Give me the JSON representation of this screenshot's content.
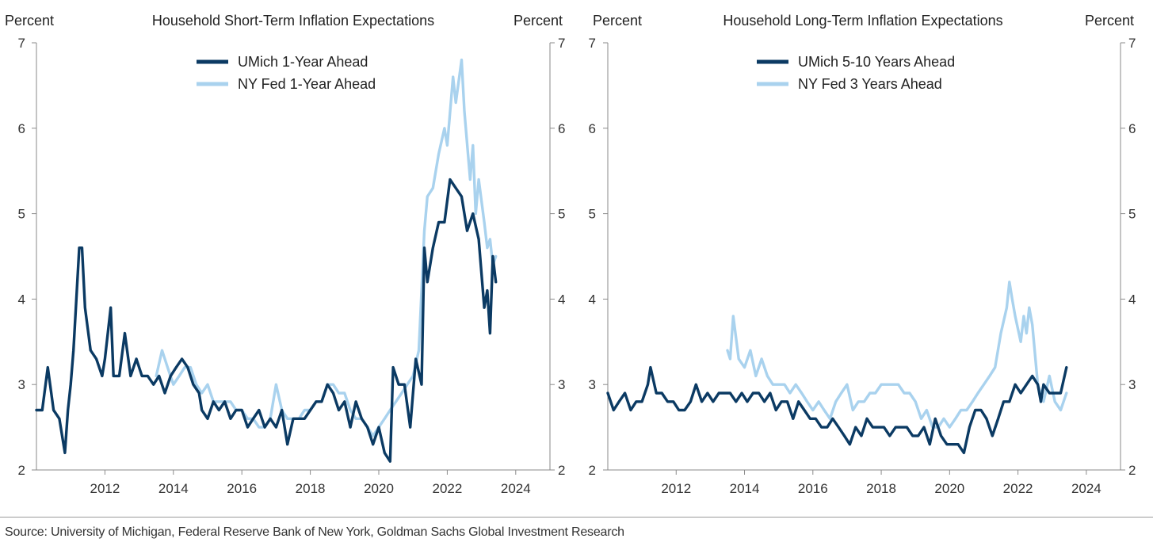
{
  "colors": {
    "dark": "#0b3a63",
    "light": "#a9d2ee"
  },
  "source": "Source: University of Michigan, Federal Reserve Bank of New York, Goldman Sachs Global Investment Research",
  "chart_data": [
    {
      "type": "line",
      "title": "Household Short-Term Inflation Expectations",
      "ylabel_left": "Percent",
      "ylabel_right": "Percent",
      "ylim": [
        2,
        7
      ],
      "yticks": [
        2,
        3,
        4,
        5,
        6,
        7
      ],
      "xlim": [
        2010.0,
        2025.0
      ],
      "xticks": [
        2012,
        2014,
        2016,
        2018,
        2020,
        2022,
        2024
      ],
      "legend_position": "top-center",
      "grid": false,
      "series": [
        {
          "name": "UMich 1-Year Ahead",
          "color": "#0b3a63",
          "x": [
            2010.0,
            2010.17,
            2010.33,
            2010.5,
            2010.67,
            2010.83,
            2010.92,
            2011.0,
            2011.08,
            2011.25,
            2011.33,
            2011.42,
            2011.58,
            2011.75,
            2011.92,
            2012.0,
            2012.17,
            2012.25,
            2012.42,
            2012.58,
            2012.75,
            2012.92,
            2013.08,
            2013.25,
            2013.42,
            2013.58,
            2013.75,
            2013.92,
            2014.08,
            2014.25,
            2014.42,
            2014.58,
            2014.75,
            2014.83,
            2015.0,
            2015.17,
            2015.33,
            2015.5,
            2015.67,
            2015.83,
            2016.0,
            2016.17,
            2016.33,
            2016.5,
            2016.67,
            2016.83,
            2017.0,
            2017.17,
            2017.33,
            2017.5,
            2017.67,
            2017.83,
            2018.0,
            2018.17,
            2018.33,
            2018.5,
            2018.67,
            2018.83,
            2019.0,
            2019.17,
            2019.33,
            2019.5,
            2019.67,
            2019.83,
            2020.0,
            2020.17,
            2020.33,
            2020.42,
            2020.58,
            2020.75,
            2020.92,
            2021.08,
            2021.25,
            2021.33,
            2021.42,
            2021.58,
            2021.75,
            2021.92,
            2022.08,
            2022.25,
            2022.42,
            2022.58,
            2022.75,
            2022.92,
            2023.08,
            2023.17,
            2023.25,
            2023.33,
            2023.42
          ],
          "y": [
            2.7,
            2.7,
            3.2,
            2.7,
            2.6,
            2.2,
            2.7,
            3.0,
            3.4,
            4.6,
            4.6,
            3.9,
            3.4,
            3.3,
            3.1,
            3.3,
            3.9,
            3.1,
            3.1,
            3.6,
            3.1,
            3.3,
            3.1,
            3.1,
            3.0,
            3.1,
            2.9,
            3.1,
            3.2,
            3.3,
            3.2,
            3.0,
            2.9,
            2.7,
            2.6,
            2.8,
            2.7,
            2.8,
            2.6,
            2.7,
            2.7,
            2.5,
            2.6,
            2.7,
            2.5,
            2.6,
            2.5,
            2.7,
            2.3,
            2.6,
            2.6,
            2.6,
            2.7,
            2.8,
            2.8,
            3.0,
            2.9,
            2.7,
            2.8,
            2.5,
            2.8,
            2.6,
            2.5,
            2.3,
            2.5,
            2.2,
            2.1,
            3.2,
            3.0,
            3.0,
            2.5,
            3.3,
            3.0,
            4.6,
            4.2,
            4.6,
            4.9,
            4.9,
            5.4,
            5.3,
            5.2,
            4.8,
            5.0,
            4.7,
            3.9,
            4.1,
            3.6,
            4.5,
            4.2
          ]
        },
        {
          "name": "NY Fed 1-Year Ahead",
          "color": "#a9d2ee",
          "x": [
            2013.5,
            2013.67,
            2013.83,
            2014.0,
            2014.17,
            2014.33,
            2014.5,
            2014.67,
            2014.83,
            2015.0,
            2015.17,
            2015.33,
            2015.5,
            2015.67,
            2015.83,
            2016.0,
            2016.17,
            2016.33,
            2016.5,
            2016.67,
            2016.83,
            2017.0,
            2017.17,
            2017.33,
            2017.5,
            2017.67,
            2017.83,
            2018.0,
            2018.17,
            2018.33,
            2018.5,
            2018.67,
            2018.83,
            2019.0,
            2019.17,
            2019.33,
            2019.5,
            2019.67,
            2019.83,
            2020.0,
            2020.17,
            2020.33,
            2020.5,
            2020.67,
            2020.83,
            2021.0,
            2021.17,
            2021.33,
            2021.42,
            2021.58,
            2021.75,
            2021.92,
            2022.0,
            2022.17,
            2022.25,
            2022.42,
            2022.5,
            2022.67,
            2022.75,
            2022.83,
            2022.92,
            2023.08,
            2023.17,
            2023.25,
            2023.33,
            2023.42
          ],
          "y": [
            3.1,
            3.4,
            3.2,
            3.0,
            3.1,
            3.2,
            3.2,
            3.0,
            2.9,
            3.0,
            2.8,
            2.8,
            2.8,
            2.8,
            2.7,
            2.7,
            2.6,
            2.6,
            2.5,
            2.5,
            2.6,
            3.0,
            2.7,
            2.6,
            2.6,
            2.6,
            2.7,
            2.7,
            2.8,
            2.8,
            3.0,
            3.0,
            2.9,
            2.9,
            2.7,
            2.6,
            2.6,
            2.5,
            2.4,
            2.5,
            2.6,
            2.7,
            2.8,
            2.9,
            3.0,
            3.1,
            3.4,
            4.8,
            5.2,
            5.3,
            5.7,
            6.0,
            5.8,
            6.6,
            6.3,
            6.8,
            6.2,
            5.4,
            5.8,
            5.0,
            5.4,
            4.9,
            4.6,
            4.7,
            4.4,
            4.5
          ]
        }
      ]
    },
    {
      "type": "line",
      "title": "Household Long-Term Inflation Expectations",
      "ylabel_left": "Percent",
      "ylabel_right": "Percent",
      "ylim": [
        2,
        7
      ],
      "yticks": [
        2,
        3,
        4,
        5,
        6,
        7
      ],
      "xlim": [
        2010.0,
        2025.0
      ],
      "xticks": [
        2012,
        2014,
        2016,
        2018,
        2020,
        2022,
        2024
      ],
      "legend_position": "top-center",
      "grid": false,
      "series": [
        {
          "name": "UMich 5-10 Years Ahead",
          "color": "#0b3a63",
          "x": [
            2010.0,
            2010.17,
            2010.33,
            2010.5,
            2010.67,
            2010.83,
            2011.0,
            2011.17,
            2011.25,
            2011.42,
            2011.58,
            2011.75,
            2011.92,
            2012.08,
            2012.25,
            2012.42,
            2012.58,
            2012.75,
            2012.92,
            2013.08,
            2013.25,
            2013.42,
            2013.58,
            2013.75,
            2013.92,
            2014.08,
            2014.25,
            2014.42,
            2014.58,
            2014.75,
            2014.92,
            2015.08,
            2015.25,
            2015.42,
            2015.58,
            2015.75,
            2015.92,
            2016.08,
            2016.25,
            2016.42,
            2016.58,
            2016.75,
            2016.92,
            2017.08,
            2017.25,
            2017.42,
            2017.58,
            2017.75,
            2017.92,
            2018.08,
            2018.25,
            2018.42,
            2018.58,
            2018.75,
            2018.92,
            2019.08,
            2019.25,
            2019.42,
            2019.58,
            2019.75,
            2019.92,
            2020.08,
            2020.25,
            2020.42,
            2020.58,
            2020.75,
            2020.92,
            2021.08,
            2021.25,
            2021.42,
            2021.58,
            2021.75,
            2021.92,
            2022.08,
            2022.25,
            2022.42,
            2022.58,
            2022.67,
            2022.75,
            2022.92,
            2023.08,
            2023.25,
            2023.42
          ],
          "y": [
            2.9,
            2.7,
            2.8,
            2.9,
            2.7,
            2.8,
            2.8,
            3.0,
            3.2,
            2.9,
            2.9,
            2.8,
            2.8,
            2.7,
            2.7,
            2.8,
            3.0,
            2.8,
            2.9,
            2.8,
            2.9,
            2.9,
            2.9,
            2.8,
            2.9,
            2.8,
            2.9,
            2.9,
            2.8,
            2.9,
            2.7,
            2.8,
            2.8,
            2.6,
            2.8,
            2.7,
            2.6,
            2.6,
            2.5,
            2.5,
            2.6,
            2.5,
            2.4,
            2.3,
            2.5,
            2.4,
            2.6,
            2.5,
            2.5,
            2.5,
            2.4,
            2.5,
            2.5,
            2.5,
            2.4,
            2.4,
            2.5,
            2.3,
            2.6,
            2.4,
            2.3,
            2.3,
            2.3,
            2.2,
            2.5,
            2.7,
            2.7,
            2.6,
            2.4,
            2.6,
            2.8,
            2.8,
            3.0,
            2.9,
            3.0,
            3.1,
            3.0,
            2.8,
            3.0,
            2.9,
            2.9,
            2.9,
            3.2
          ]
        },
        {
          "name": "NY Fed 3 Years Ahead",
          "color": "#a9d2ee",
          "x": [
            2013.5,
            2013.58,
            2013.67,
            2013.83,
            2014.0,
            2014.17,
            2014.33,
            2014.5,
            2014.67,
            2014.83,
            2015.0,
            2015.17,
            2015.33,
            2015.5,
            2015.67,
            2015.83,
            2016.0,
            2016.17,
            2016.33,
            2016.5,
            2016.67,
            2016.83,
            2017.0,
            2017.17,
            2017.33,
            2017.5,
            2017.67,
            2017.83,
            2018.0,
            2018.17,
            2018.33,
            2018.5,
            2018.67,
            2018.83,
            2019.0,
            2019.17,
            2019.33,
            2019.5,
            2019.67,
            2019.83,
            2020.0,
            2020.17,
            2020.33,
            2020.5,
            2020.67,
            2020.83,
            2021.0,
            2021.17,
            2021.33,
            2021.5,
            2021.67,
            2021.75,
            2021.83,
            2021.92,
            2022.08,
            2022.17,
            2022.25,
            2022.33,
            2022.42,
            2022.58,
            2022.75,
            2022.92,
            2023.08,
            2023.25,
            2023.42
          ],
          "y": [
            3.4,
            3.3,
            3.8,
            3.3,
            3.2,
            3.4,
            3.1,
            3.3,
            3.1,
            3.0,
            3.0,
            3.0,
            2.9,
            3.0,
            2.9,
            2.8,
            2.7,
            2.8,
            2.7,
            2.6,
            2.8,
            2.9,
            3.0,
            2.7,
            2.8,
            2.8,
            2.9,
            2.9,
            3.0,
            3.0,
            3.0,
            3.0,
            2.9,
            2.9,
            2.8,
            2.6,
            2.7,
            2.5,
            2.5,
            2.6,
            2.5,
            2.6,
            2.7,
            2.7,
            2.8,
            2.9,
            3.0,
            3.1,
            3.2,
            3.6,
            3.9,
            4.2,
            4.0,
            3.8,
            3.5,
            3.8,
            3.6,
            3.9,
            3.7,
            3.0,
            2.8,
            3.1,
            2.8,
            2.7,
            2.9
          ]
        }
      ]
    }
  ]
}
